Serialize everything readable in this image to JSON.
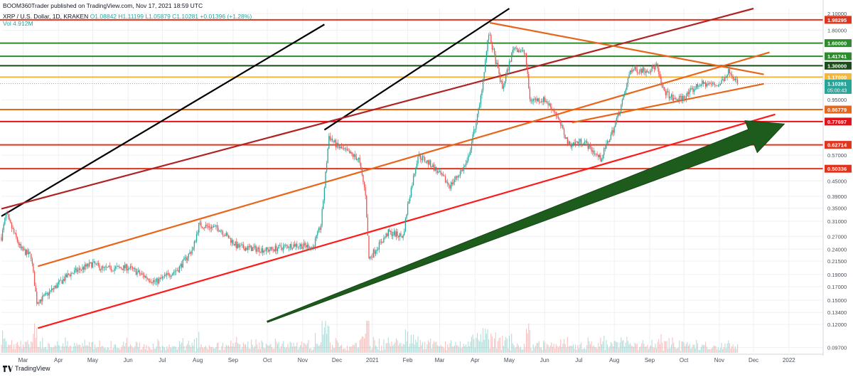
{
  "header": {
    "publisher_line": "BOOM360Trader published on TradingView.com, Nov 17, 2021 18:59 UTC",
    "symbol_line": "XRP / U.S. Dollar, 1D, KRAKEN",
    "ohlc": "O1.08842 H1.11199 L1.05879 C1.10281 +0.01396 (+1.28%)",
    "volume_label": "Vol 4.912M"
  },
  "footer": {
    "brand": "TradingView"
  },
  "colors": {
    "bull": "#26a69a",
    "bear": "#ef5350",
    "arrow": "#1e5c1e",
    "black_line": "#000000",
    "maroon_line": "#b22222",
    "orange_line": "#e8651a",
    "red_line": "#ff1a1a"
  },
  "chart_data": {
    "type": "candlestick",
    "scale": "log",
    "symbol": "XRP / U.S. Dollar",
    "interval": "1D",
    "exchange": "KRAKEN",
    "ylim": [
      0.093,
      2.2
    ],
    "xlim": [
      "2020-02-11",
      "2022-01-31"
    ],
    "y_ticks": [
      0.097,
      0.12,
      0.134,
      0.15,
      0.17,
      0.19,
      0.215,
      0.24,
      0.27,
      0.31,
      0.35,
      0.39,
      0.45,
      0.57,
      0.95,
      1.8,
      2.1
    ],
    "y_tick_labels": [
      "0.09700",
      "0.12000",
      "0.13400",
      "0.15000",
      "0.17000",
      "0.19000",
      "0.21500",
      "0.24000",
      "0.27000",
      "0.31000",
      "0.35000",
      "0.39000",
      "0.45000",
      "0.57000",
      "0.95000",
      "1.80000",
      "2.10000"
    ],
    "x_ticks": [
      {
        "date": "2020-03-01",
        "label": "Mar"
      },
      {
        "date": "2020-04-01",
        "label": "Apr"
      },
      {
        "date": "2020-05-01",
        "label": "May"
      },
      {
        "date": "2020-06-01",
        "label": "Jun"
      },
      {
        "date": "2020-07-01",
        "label": "Jul"
      },
      {
        "date": "2020-08-01",
        "label": "Aug"
      },
      {
        "date": "2020-09-01",
        "label": "Sep"
      },
      {
        "date": "2020-10-01",
        "label": "Oct"
      },
      {
        "date": "2020-11-01",
        "label": "Nov"
      },
      {
        "date": "2020-12-01",
        "label": "Dec"
      },
      {
        "date": "2021-01-01",
        "label": "2021"
      },
      {
        "date": "2021-02-01",
        "label": "Feb"
      },
      {
        "date": "2021-03-01",
        "label": "Mar"
      },
      {
        "date": "2021-04-01",
        "label": "Apr"
      },
      {
        "date": "2021-05-01",
        "label": "May"
      },
      {
        "date": "2021-06-01",
        "label": "Jun"
      },
      {
        "date": "2021-07-01",
        "label": "Jul"
      },
      {
        "date": "2021-08-01",
        "label": "Aug"
      },
      {
        "date": "2021-09-01",
        "label": "Sep"
      },
      {
        "date": "2021-10-01",
        "label": "Oct"
      },
      {
        "date": "2021-11-01",
        "label": "Nov"
      },
      {
        "date": "2021-12-01",
        "label": "Dec"
      },
      {
        "date": "2022-01-01",
        "label": "2022"
      }
    ],
    "horizontal_levels": [
      {
        "price": 1.98295,
        "label": "1.98295",
        "color": "#e0341f"
      },
      {
        "price": 1.6,
        "label": "1.60000",
        "color": "#2e8b2e"
      },
      {
        "price": 1.41741,
        "label": "1.41741",
        "color": "#2e8b2e"
      },
      {
        "price": 1.3,
        "label": "1.30000",
        "color": "#1b4d1b"
      },
      {
        "price": 1.17,
        "label": "1.17000",
        "color": "#f5b63a"
      },
      {
        "price": 0.86779,
        "label": "0.86779",
        "color": "#e8651a"
      },
      {
        "price": 0.77697,
        "label": "0.77697",
        "color": "#e0141a"
      },
      {
        "price": 0.62714,
        "label": "0.62714",
        "color": "#e0341f"
      },
      {
        "price": 0.50336,
        "label": "0.50336",
        "color": "#e0341f"
      }
    ],
    "last_price": {
      "price": 1.10281,
      "label": "1.10281",
      "countdown": "05:00:43"
    },
    "trend_lines": [
      {
        "from": [
          "2020-02-11",
          0.325
        ],
        "to": [
          "2020-11-20",
          1.9
        ],
        "color": "#000000"
      },
      {
        "from": [
          "2020-11-20",
          0.72
        ],
        "to": [
          "2021-05-01",
          2.2
        ],
        "color": "#000000"
      },
      {
        "from": [
          "2020-02-11",
          0.348
        ],
        "to": [
          "2021-12-01",
          2.2
        ],
        "color": "#b22222"
      },
      {
        "from": [
          "2020-03-14",
          0.205
        ],
        "to": [
          "2021-12-15",
          1.47
        ],
        "color": "#e8651a"
      },
      {
        "from": [
          "2020-03-14",
          0.116
        ],
        "to": [
          "2021-12-20",
          0.83
        ],
        "color": "#ff1a1a"
      },
      {
        "from": [
          "2021-04-14",
          1.93
        ],
        "to": [
          "2021-12-10",
          1.2
        ],
        "color": "#e8651a"
      },
      {
        "from": [
          "2021-06-25",
          0.77
        ],
        "to": [
          "2021-12-10",
          1.1
        ],
        "color": "#e8651a"
      }
    ],
    "arrow": {
      "from": [
        "2020-10-01",
        0.123
      ],
      "to": [
        "2021-12-28",
        0.76
      ],
      "color": "#1e5c1e"
    },
    "price_anchors": [
      [
        "2020-02-11",
        0.268
      ],
      [
        "2020-02-15",
        0.33
      ],
      [
        "2020-02-28",
        0.24
      ],
      [
        "2020-03-08",
        0.225
      ],
      [
        "2020-03-13",
        0.148
      ],
      [
        "2020-03-20",
        0.155
      ],
      [
        "2020-04-10",
        0.19
      ],
      [
        "2020-05-01",
        0.21
      ],
      [
        "2020-05-10",
        0.2
      ],
      [
        "2020-06-01",
        0.203
      ],
      [
        "2020-06-25",
        0.177
      ],
      [
        "2020-07-15",
        0.2
      ],
      [
        "2020-07-28",
        0.242
      ],
      [
        "2020-08-02",
        0.3
      ],
      [
        "2020-08-20",
        0.29
      ],
      [
        "2020-09-05",
        0.245
      ],
      [
        "2020-10-01",
        0.238
      ],
      [
        "2020-10-25",
        0.25
      ],
      [
        "2020-11-10",
        0.245
      ],
      [
        "2020-11-17",
        0.3
      ],
      [
        "2020-11-24",
        0.68
      ],
      [
        "2020-12-01",
        0.62
      ],
      [
        "2020-12-20",
        0.55
      ],
      [
        "2020-12-26",
        0.4
      ],
      [
        "2020-12-29",
        0.22
      ],
      [
        "2021-01-15",
        0.28
      ],
      [
        "2021-01-28",
        0.27
      ],
      [
        "2021-02-01",
        0.36
      ],
      [
        "2021-02-10",
        0.57
      ],
      [
        "2021-02-22",
        0.52
      ],
      [
        "2021-03-10",
        0.43
      ],
      [
        "2021-03-25",
        0.53
      ],
      [
        "2021-04-05",
        0.9
      ],
      [
        "2021-04-13",
        1.75
      ],
      [
        "2021-04-20",
        1.3
      ],
      [
        "2021-04-25",
        1.05
      ],
      [
        "2021-05-05",
        1.55
      ],
      [
        "2021-05-15",
        1.45
      ],
      [
        "2021-05-19",
        0.95
      ],
      [
        "2021-06-01",
        0.95
      ],
      [
        "2021-06-10",
        0.85
      ],
      [
        "2021-06-22",
        0.63
      ],
      [
        "2021-07-05",
        0.65
      ],
      [
        "2021-07-20",
        0.55
      ],
      [
        "2021-08-01",
        0.74
      ],
      [
        "2021-08-10",
        1.0
      ],
      [
        "2021-08-15",
        1.25
      ],
      [
        "2021-09-01",
        1.25
      ],
      [
        "2021-09-07",
        1.3
      ],
      [
        "2021-09-12",
        1.05
      ],
      [
        "2021-09-22",
        0.95
      ],
      [
        "2021-10-01",
        0.97
      ],
      [
        "2021-10-15",
        1.1
      ],
      [
        "2021-11-01",
        1.09
      ],
      [
        "2021-11-10",
        1.25
      ],
      [
        "2021-11-17",
        1.103
      ]
    ]
  }
}
